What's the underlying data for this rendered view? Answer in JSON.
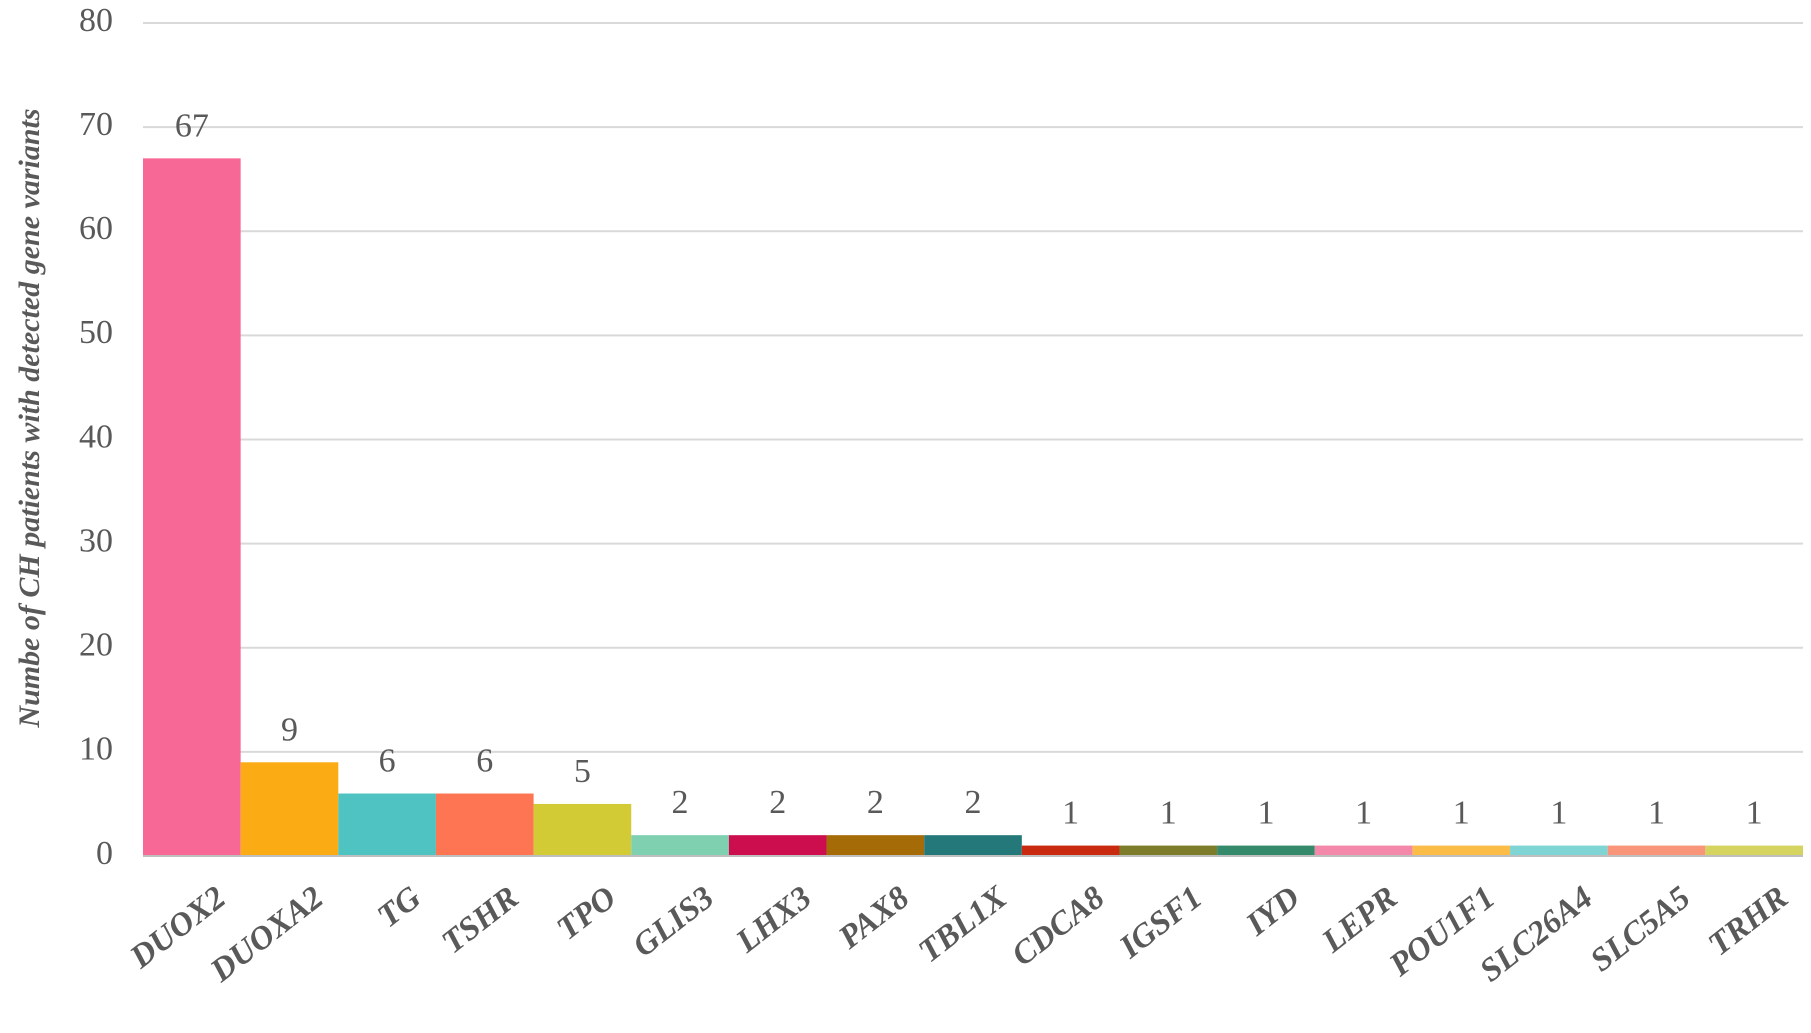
{
  "chart_data": {
    "type": "bar",
    "ylabel": "Numbe of CH patients with detected gene variants",
    "categories": [
      "DUOX2",
      "DUOXA2",
      "TG",
      "TSHR",
      "TPO",
      "GLIS3",
      "LHX3",
      "PAX8",
      "TBL1X",
      "CDCA8",
      "IGSF1",
      "IYD",
      "LEPR",
      "POU1F1",
      "SLC26A4",
      "SLC5A5",
      "TRHR"
    ],
    "values": [
      67,
      9,
      6,
      6,
      5,
      2,
      2,
      2,
      2,
      1,
      1,
      1,
      1,
      1,
      1,
      1,
      1
    ],
    "colors": [
      "#f76896",
      "#fbab14",
      "#4fc3c1",
      "#fd7552",
      "#d2cb36",
      "#7fd0b0",
      "#cc0e4f",
      "#a56b07",
      "#25787a",
      "#c8290f",
      "#7d7c2a",
      "#348a6b",
      "#f388aa",
      "#fbbd48",
      "#7fd4d4",
      "#f99579",
      "#d6d460"
    ],
    "ylim": [
      0,
      80
    ],
    "yticks": [
      0,
      10,
      20,
      30,
      40,
      50,
      60,
      70,
      80
    ],
    "grid": true
  }
}
